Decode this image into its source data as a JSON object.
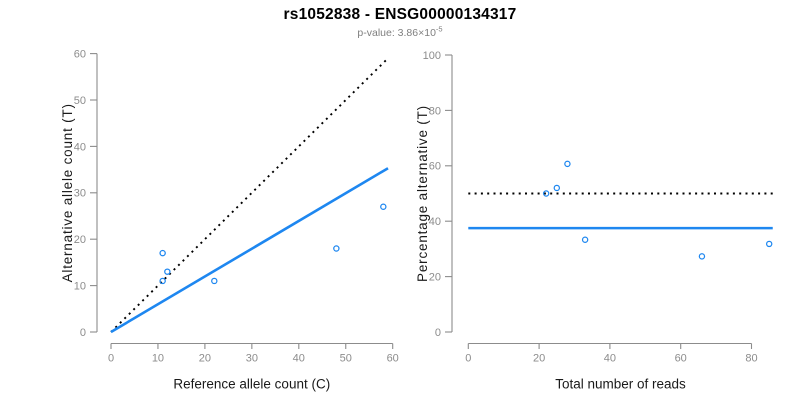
{
  "header": {
    "title": "rs1052838 - ENSG00000134317",
    "pvalue_prefix": "p-value: ",
    "pvalue_base": "3.86×10",
    "pvalue_exponent": "-5"
  },
  "colors": {
    "accent_blue": "#1E87F0",
    "line_black": "#000000",
    "axis_gray": "#8C8C8C",
    "tick_label_gray": "#8C8C8C",
    "axis_title_black": "#1A1A1A",
    "subtitle_gray": "#7F7F7F",
    "background": "#FFFFFF"
  },
  "chart_data": [
    {
      "type": "scatter",
      "name": "allele-counts-scatter",
      "xlabel": "Reference allele count (C)",
      "ylabel": "Alternative allele count (T)",
      "xlim": [
        0,
        60
      ],
      "ylim": [
        0,
        60
      ],
      "xticks": [
        0,
        10,
        20,
        30,
        40,
        50,
        60
      ],
      "yticks": [
        0,
        10,
        20,
        30,
        40,
        50,
        60
      ],
      "grid": false,
      "legend": false,
      "point_color": "#1E87F0",
      "points": [
        [
          11,
          17
        ],
        [
          12,
          13
        ],
        [
          11,
          11
        ],
        [
          22,
          11
        ],
        [
          48,
          18
        ],
        [
          58,
          27
        ]
      ],
      "lines": [
        {
          "name": "identity-line",
          "style": "dotted",
          "color": "#000000",
          "x": [
            0,
            59
          ],
          "y": [
            0,
            59
          ]
        },
        {
          "name": "fit-line",
          "style": "solid",
          "color": "#1E87F0",
          "x": [
            0,
            59
          ],
          "y": [
            0,
            35.3
          ]
        }
      ]
    },
    {
      "type": "scatter",
      "name": "percentage-vs-reads-scatter",
      "xlabel": "Total number of reads",
      "ylabel": "Percentage alternative (T)",
      "xlim": [
        0,
        80
      ],
      "ylim": [
        0,
        100
      ],
      "xticks": [
        0,
        20,
        40,
        60,
        80
      ],
      "yticks": [
        0,
        20,
        40,
        60,
        80,
        100
      ],
      "grid": false,
      "legend": false,
      "point_color": "#1E87F0",
      "points": [
        [
          22,
          50
        ],
        [
          25,
          52
        ],
        [
          28,
          60.7
        ],
        [
          33,
          33.3
        ],
        [
          66,
          27.3
        ],
        [
          85,
          31.8
        ]
      ],
      "lines": [
        {
          "name": "fifty-percent-line",
          "style": "dotted",
          "color": "#000000",
          "x": [
            0,
            86
          ],
          "y": [
            50,
            50
          ]
        },
        {
          "name": "mean-percentage-line",
          "style": "solid",
          "color": "#1E87F0",
          "x": [
            0,
            86
          ],
          "y": [
            37.5,
            37.5
          ]
        }
      ]
    }
  ]
}
